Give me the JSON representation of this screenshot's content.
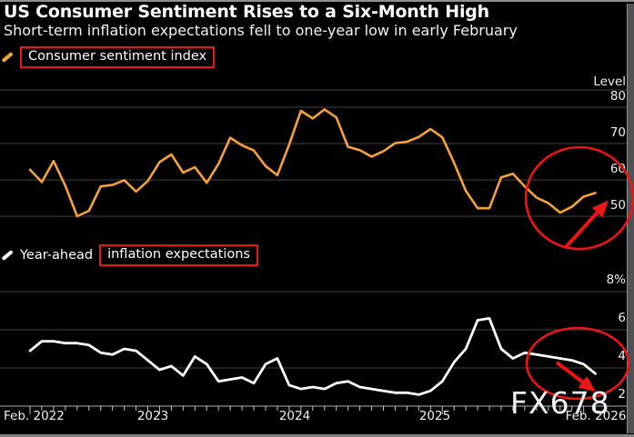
{
  "header": {
    "title": "US Consumer Sentiment Rises to a Six-Month High",
    "subtitle": "Short-term inflation expectations fell to one-year low in early February"
  },
  "legends": {
    "sentiment": {
      "label": "Consumer sentiment index",
      "marker_color": "#f7a139"
    },
    "inflation": {
      "prefix": "Year-ahead",
      "boxed_label": "inflation expectations",
      "marker_color": "#ffffff"
    }
  },
  "watermark": "FX678",
  "colors": {
    "background": "#000000",
    "sentiment_line": "#f7a139",
    "inflation_line": "#ffffff",
    "annotation_red": "#ed1515",
    "grid": "#454545",
    "axis_line": "#8c8c8c",
    "tick": "#c4c4c4",
    "text": "#f0f0f0"
  },
  "x_axis": {
    "labels": [
      "Feb. 2022",
      "2023",
      "2024",
      "2025",
      "Feb. 2026"
    ],
    "frequency": "monthly ticks"
  },
  "chart_data": [
    {
      "type": "line",
      "name": "Consumer sentiment index",
      "color": "#f7a139",
      "x_start": "2022-02",
      "x_end": "2026-02",
      "freq": "monthly",
      "y_axis": {
        "unit_header": "Level",
        "tick_labels": [
          "80",
          "70",
          "60",
          "50"
        ],
        "tick_values": [
          80,
          70,
          60,
          50
        ]
      },
      "ylim": [
        45,
        85
      ],
      "values": [
        62.8,
        59.4,
        65.2,
        58.4,
        50.0,
        51.5,
        58.2,
        58.6,
        59.9,
        56.8,
        59.7,
        64.9,
        67.0,
        62.0,
        63.5,
        59.2,
        64.4,
        71.6,
        69.5,
        68.1,
        63.8,
        61.3,
        69.7,
        79.0,
        76.9,
        79.4,
        77.2,
        69.1,
        68.2,
        66.4,
        67.9,
        70.1,
        70.5,
        71.8,
        74.0,
        71.7,
        64.7,
        57.0,
        52.2,
        52.2,
        60.7,
        61.7,
        58.2,
        55.1,
        53.6,
        51.0,
        52.6,
        55.4,
        56.4
      ],
      "annotation": "red ellipse and up arrow highlighting the recent rebound to a six-month high"
    },
    {
      "type": "line",
      "name": "Year-ahead inflation expectations",
      "color": "#ffffff",
      "x_start": "2022-02",
      "x_end": "2026-02",
      "freq": "monthly",
      "y_axis": {
        "unit_header": "",
        "tick_labels": [
          "8%",
          "6",
          "4",
          "2"
        ],
        "tick_values": [
          8,
          6,
          4,
          2
        ]
      },
      "ylim": [
        1.5,
        8.5
      ],
      "values": [
        4.9,
        5.4,
        5.4,
        5.3,
        5.3,
        5.2,
        4.8,
        4.7,
        5.0,
        4.9,
        4.4,
        3.9,
        4.1,
        3.6,
        4.6,
        4.2,
        3.3,
        3.4,
        3.5,
        3.2,
        4.2,
        4.5,
        3.1,
        2.9,
        3.0,
        2.9,
        3.2,
        3.3,
        3.0,
        2.9,
        2.8,
        2.7,
        2.7,
        2.6,
        2.8,
        3.3,
        4.3,
        5.0,
        6.5,
        6.6,
        5.0,
        4.5,
        4.8,
        4.7,
        4.6,
        4.5,
        4.4,
        4.2,
        3.7
      ],
      "annotation": "red ellipse and down arrow highlighting the drop to a one-year low"
    }
  ]
}
